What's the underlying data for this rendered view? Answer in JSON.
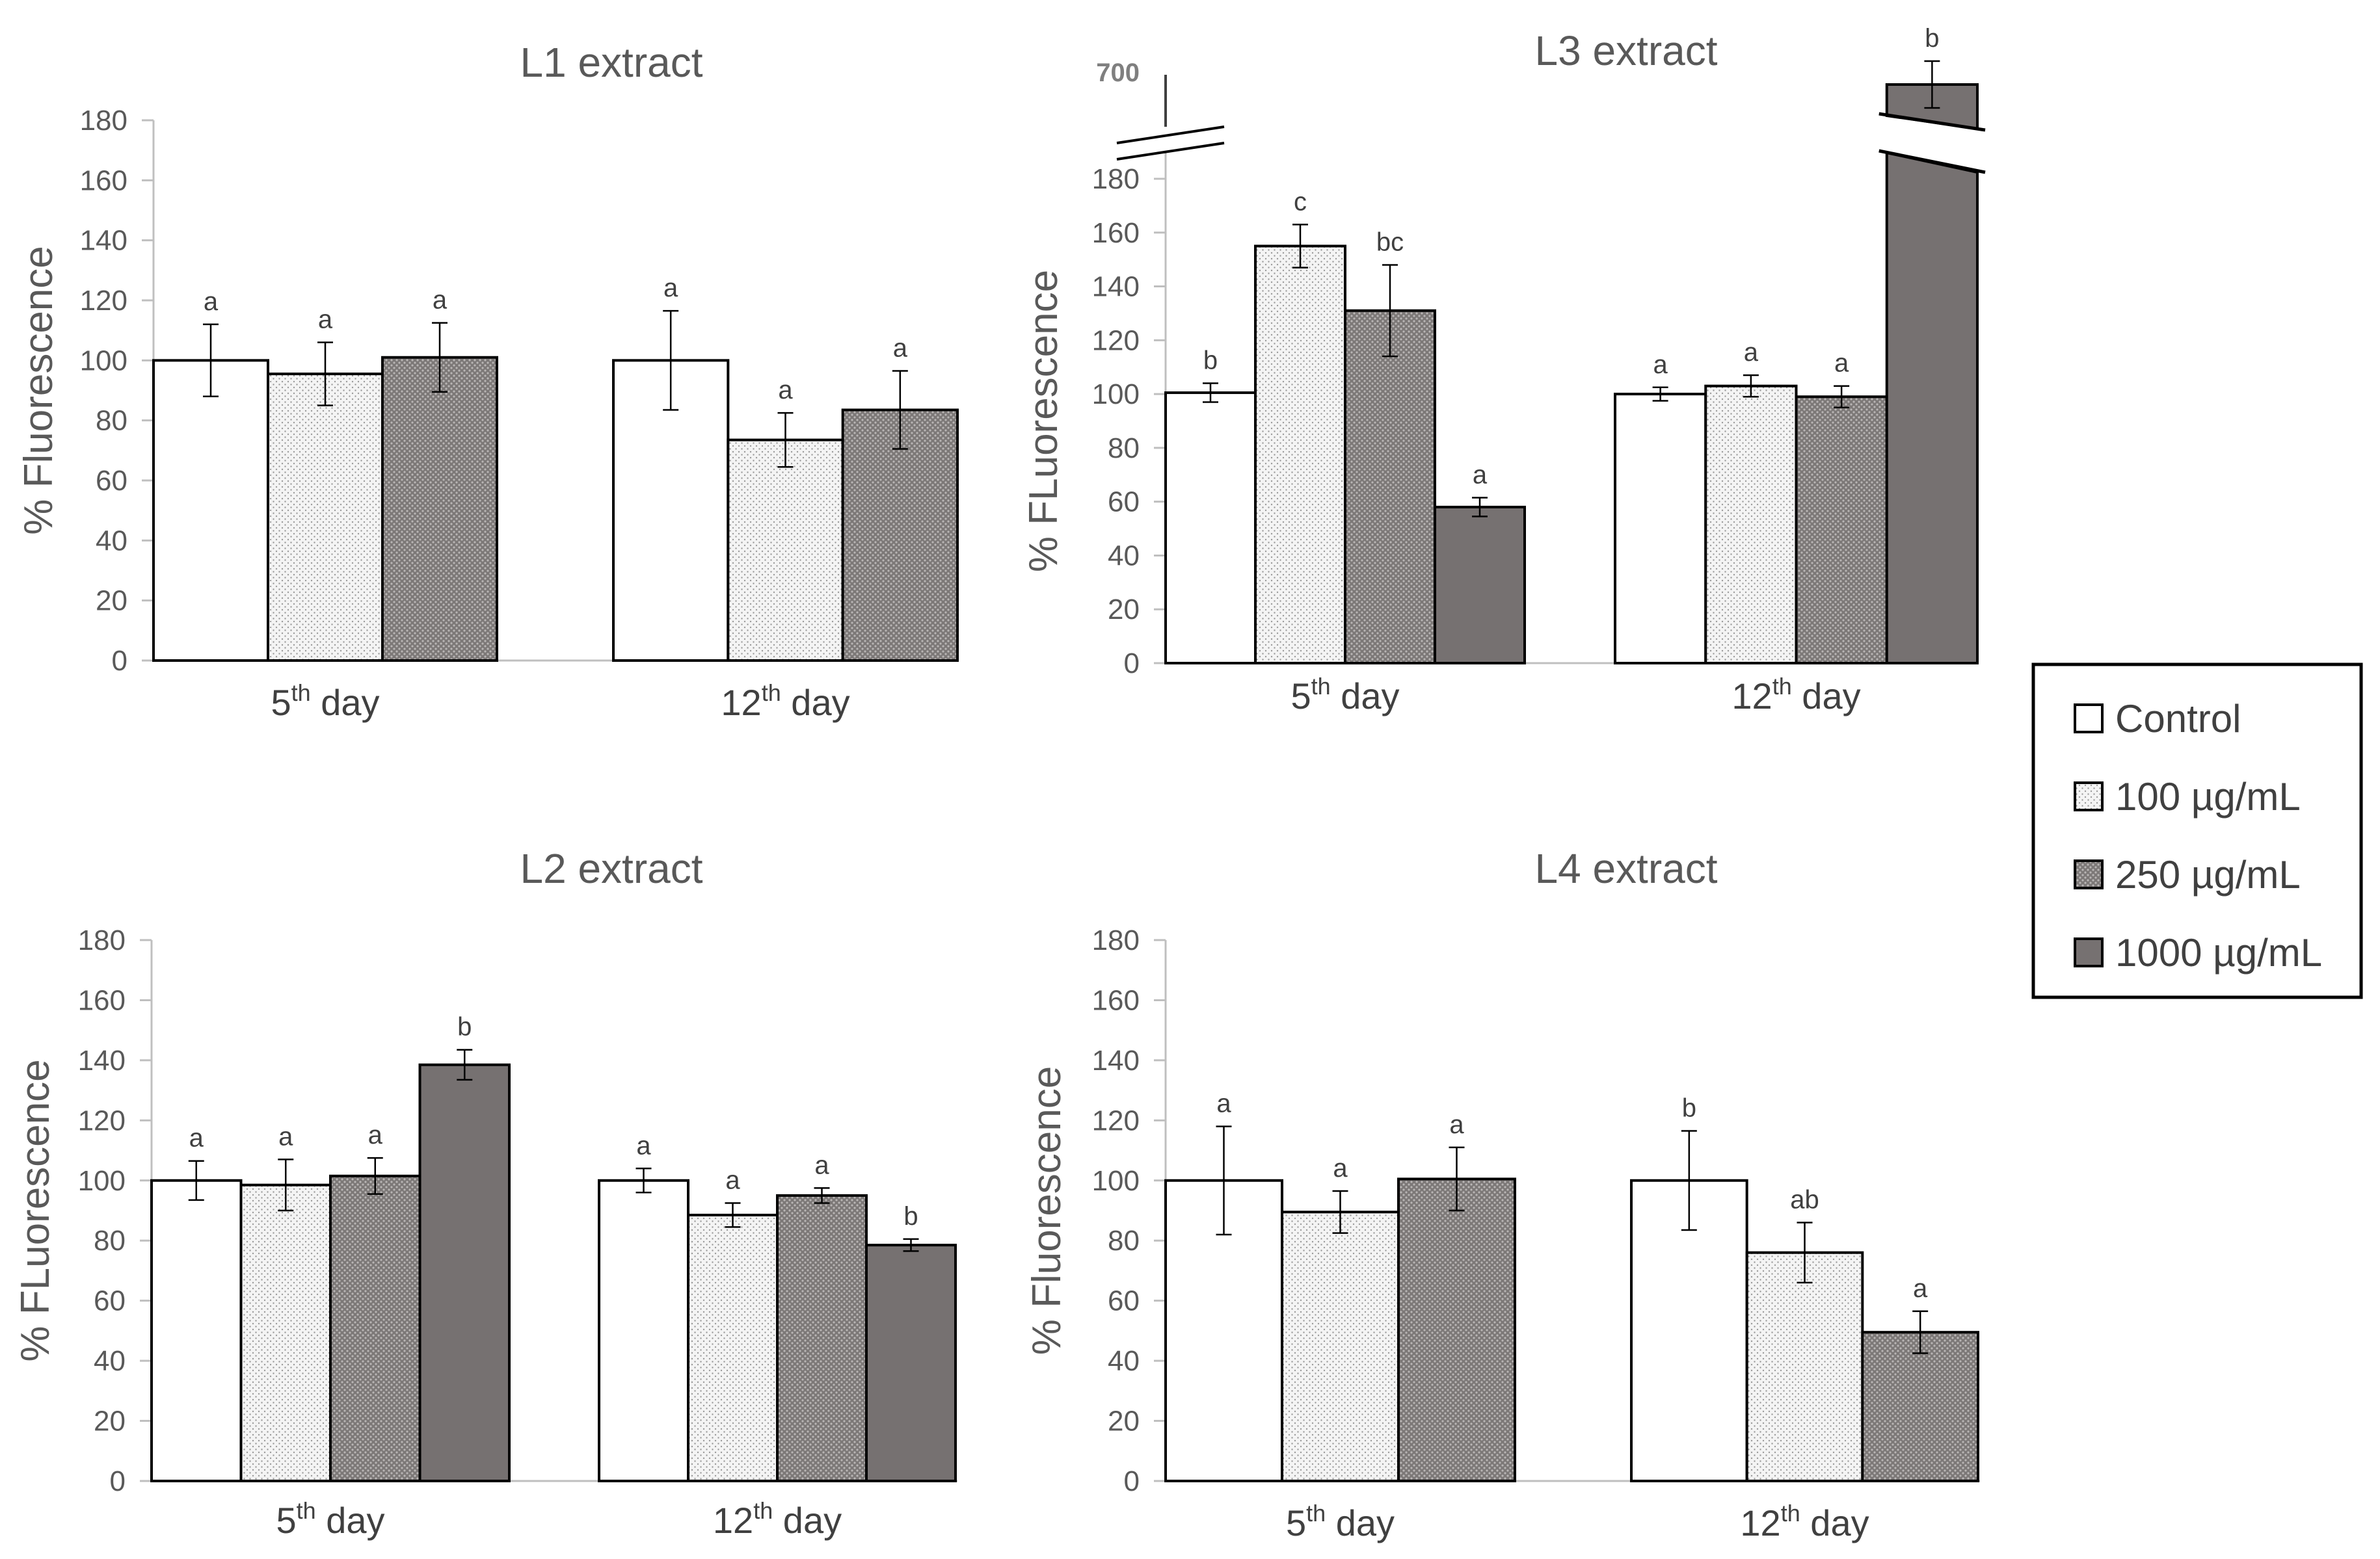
{
  "colors": {
    "control_fill": "#ffffff",
    "dotted_fill": "#f2f2f2",
    "hatched_fill": "#8c8886",
    "solid_fill": "#767171",
    "bar_stroke": "#000000",
    "axis": "#bfbfbf",
    "text": "#595959"
  },
  "legend": {
    "items": [
      {
        "label": "Control",
        "pattern": "control"
      },
      {
        "label": "100 µg/mL",
        "pattern": "dotted"
      },
      {
        "label": "250 µg/mL",
        "pattern": "hatched"
      },
      {
        "label": "1000 µg/mL",
        "pattern": "solid"
      }
    ]
  },
  "chart_data": [
    {
      "type": "bar",
      "title": "L1 extract",
      "ylabel": "% Fluorescence",
      "ylim": [
        0,
        180
      ],
      "yticks": [
        0,
        20,
        40,
        60,
        80,
        100,
        120,
        140,
        160,
        180
      ],
      "categories": [
        {
          "base": "5",
          "sup": "th",
          "rest": " day"
        },
        {
          "base": "12",
          "sup": "th",
          "rest": " day"
        }
      ],
      "series": [
        {
          "name": "Control",
          "values": [
            100,
            100
          ],
          "errors": [
            12,
            16.5
          ],
          "labels": [
            "a",
            "a"
          ]
        },
        {
          "name": "100 µg/mL",
          "values": [
            95.5,
            73.5
          ],
          "errors": [
            10.5,
            9
          ],
          "labels": [
            "a",
            "a"
          ]
        },
        {
          "name": "250 µg/mL",
          "values": [
            101,
            83.5
          ],
          "errors": [
            11.5,
            13
          ],
          "labels": [
            "a",
            "a"
          ]
        }
      ]
    },
    {
      "type": "bar",
      "title": "L3 extract",
      "ylabel": "% FLuorescence",
      "ylim": [
        0,
        180
      ],
      "yticks": [
        0,
        20,
        40,
        60,
        80,
        100,
        120,
        140,
        160,
        180
      ],
      "axis_break": {
        "upper_label": "700",
        "broken_value": 700,
        "broken_error": 30
      },
      "categories": [
        {
          "base": "5",
          "sup": "th",
          "rest": " day"
        },
        {
          "base": "12",
          "sup": "th",
          "rest": " day"
        }
      ],
      "series": [
        {
          "name": "Control",
          "values": [
            100.5,
            100
          ],
          "errors": [
            3.5,
            2.5
          ],
          "labels": [
            "b",
            "a"
          ]
        },
        {
          "name": "100 µg/mL",
          "values": [
            155,
            103
          ],
          "errors": [
            8,
            4
          ],
          "labels": [
            "c",
            "a"
          ]
        },
        {
          "name": "250 µg/mL",
          "values": [
            131,
            99
          ],
          "errors": [
            17,
            4
          ],
          "labels": [
            "bc",
            "a"
          ]
        },
        {
          "name": "1000 µg/mL",
          "values": [
            58,
            700
          ],
          "errors": [
            3.5,
            30
          ],
          "labels": [
            "a",
            "b"
          ]
        }
      ]
    },
    {
      "type": "bar",
      "title": "L2 extract",
      "ylabel": "% FLuorescence",
      "ylim": [
        0,
        180
      ],
      "yticks": [
        0,
        20,
        40,
        60,
        80,
        100,
        120,
        140,
        160,
        180
      ],
      "categories": [
        {
          "base": "5",
          "sup": "th",
          "rest": " day"
        },
        {
          "base": "12",
          "sup": "th",
          "rest": " day"
        }
      ],
      "series": [
        {
          "name": "Control",
          "values": [
            100,
            100
          ],
          "errors": [
            6.5,
            4
          ],
          "labels": [
            "a",
            "a"
          ]
        },
        {
          "name": "100 µg/mL",
          "values": [
            98.5,
            88.5
          ],
          "errors": [
            8.5,
            4
          ],
          "labels": [
            "a",
            "a"
          ]
        },
        {
          "name": "250 µg/mL",
          "values": [
            101.5,
            95
          ],
          "errors": [
            6,
            2.5
          ],
          "labels": [
            "a",
            "a"
          ]
        },
        {
          "name": "1000 µg/mL",
          "values": [
            138.5,
            78.5
          ],
          "errors": [
            5,
            2
          ],
          "labels": [
            "b",
            "b"
          ]
        }
      ]
    },
    {
      "type": "bar",
      "title": "L4 extract",
      "ylabel": "% Fluorescence",
      "ylim": [
        0,
        180
      ],
      "yticks": [
        0,
        20,
        40,
        60,
        80,
        100,
        120,
        140,
        160,
        180
      ],
      "categories": [
        {
          "base": "5",
          "sup": "th",
          "rest": " day"
        },
        {
          "base": "12",
          "sup": "th",
          "rest": " day"
        }
      ],
      "series": [
        {
          "name": "Control",
          "values": [
            100,
            100
          ],
          "errors": [
            18,
            16.5
          ],
          "labels": [
            "a",
            "b"
          ]
        },
        {
          "name": "100 µg/mL",
          "values": [
            89.5,
            76
          ],
          "errors": [
            7,
            10
          ],
          "labels": [
            "a",
            "ab"
          ]
        },
        {
          "name": "250 µg/mL",
          "values": [
            100.5,
            49.5
          ],
          "errors": [
            10.5,
            7
          ],
          "labels": [
            "a",
            "a"
          ]
        }
      ]
    }
  ]
}
